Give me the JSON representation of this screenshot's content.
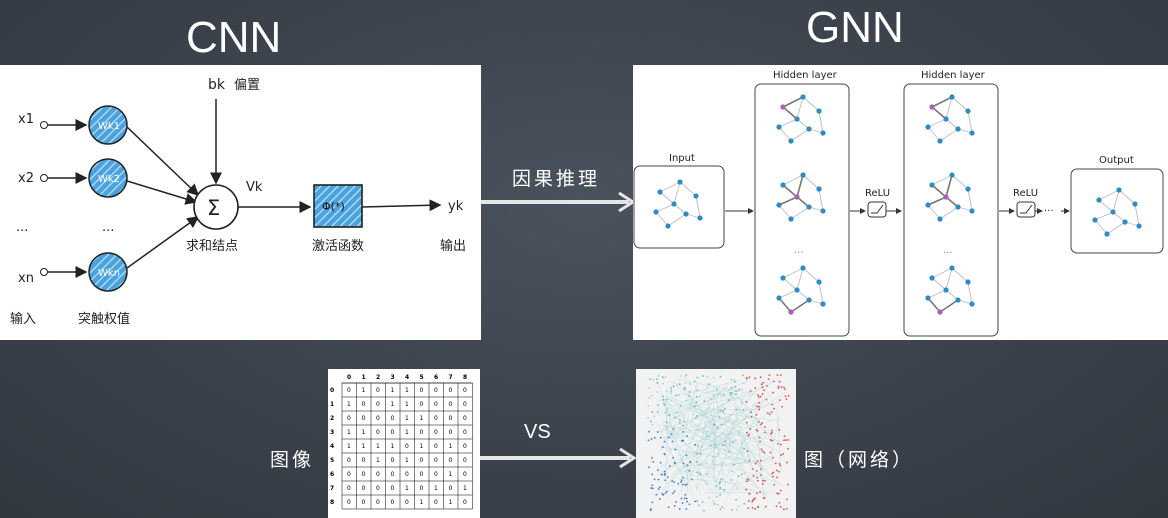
{
  "titles": {
    "cnn": "CNN",
    "gnn": "GNN"
  },
  "cnn_diagram": {
    "inputs": [
      "x1",
      "x2",
      "...",
      "xn"
    ],
    "weights": [
      "Wk1",
      "Wk2",
      "...",
      "Wkn"
    ],
    "bias": "bk",
    "bias_label": "偏置",
    "sum_symbol": "Σ",
    "sum_label": "求和结点",
    "v_label": "Vk",
    "activation": "Φ(*)",
    "activation_label": "激活函数",
    "output": "yk",
    "output_label": "输出",
    "input_label": "输入",
    "weight_label": "突触权值"
  },
  "gnn_diagram": {
    "input_label": "Input",
    "hidden1_label": "Hidden layer",
    "hidden2_label": "Hidden layer",
    "relu1": "ReLU",
    "relu2": "ReLU",
    "output_label": "Output",
    "ellipsis": "...",
    "dots": "···"
  },
  "arrows": {
    "top_label": "因果推理",
    "bottom_label": "VS"
  },
  "matrix": {
    "headers": [
      "0",
      "1",
      "2",
      "3",
      "4",
      "5",
      "6",
      "7",
      "8"
    ],
    "rows": [
      [
        "0",
        "0",
        "1",
        "0",
        "1",
        "1",
        "0",
        "0",
        "0",
        "0"
      ],
      [
        "1",
        "1",
        "0",
        "0",
        "1",
        "1",
        "0",
        "0",
        "0",
        "0"
      ],
      [
        "2",
        "0",
        "0",
        "0",
        "0",
        "1",
        "1",
        "0",
        "0",
        "0"
      ],
      [
        "3",
        "1",
        "1",
        "0",
        "0",
        "1",
        "0",
        "0",
        "0",
        "0"
      ],
      [
        "4",
        "1",
        "1",
        "1",
        "1",
        "0",
        "1",
        "0",
        "1",
        "0"
      ],
      [
        "5",
        "0",
        "0",
        "1",
        "0",
        "1",
        "0",
        "0",
        "0",
        "0"
      ],
      [
        "6",
        "0",
        "0",
        "0",
        "0",
        "0",
        "0",
        "0",
        "1",
        "0"
      ],
      [
        "7",
        "0",
        "0",
        "0",
        "0",
        "1",
        "0",
        "1",
        "0",
        "1"
      ],
      [
        "8",
        "0",
        "0",
        "0",
        "0",
        "0",
        "1",
        "0",
        "1",
        "0"
      ]
    ]
  },
  "labels": {
    "image": "图像",
    "graph": "图（网络）"
  },
  "colors": {
    "node": "#2e8bc6",
    "highlight": "#b05ac2",
    "edge": "#b8bcc2",
    "accent": "#4aa3df"
  }
}
